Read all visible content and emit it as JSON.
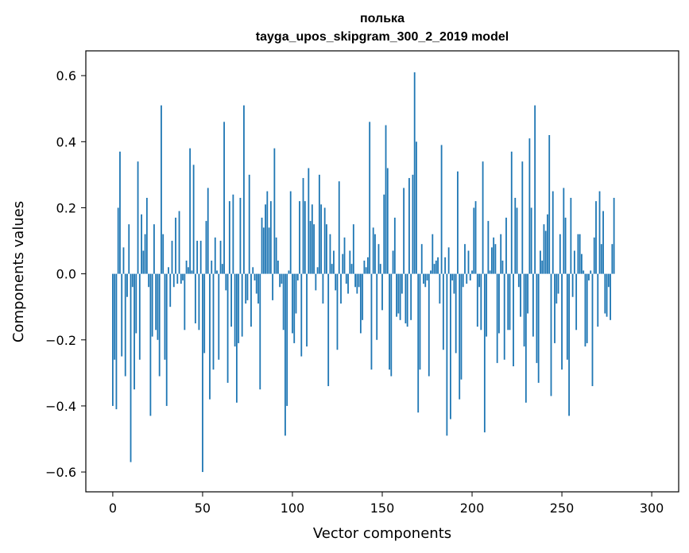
{
  "chart_data": {
    "type": "bar",
    "title": "полька",
    "subtitle": "tayga_upos_skipgram_300_2_2019 model",
    "xlabel": "Vector components",
    "ylabel": "Components values",
    "xlim": [
      -15,
      315
    ],
    "ylim": [
      -0.66,
      0.675
    ],
    "xticks": [
      0,
      50,
      100,
      150,
      200,
      250,
      300
    ],
    "xtick_labels": [
      "0",
      "50",
      "100",
      "150",
      "200",
      "250",
      "300"
    ],
    "yticks": [
      -0.6,
      -0.4,
      -0.2,
      0.0,
      0.2,
      0.4,
      0.6
    ],
    "ytick_labels": [
      "−0.6",
      "−0.4",
      "−0.2",
      "0.0",
      "0.2",
      "0.4",
      "0.6"
    ],
    "grid": false,
    "bar_color": "#1f77b4",
    "values": [
      -0.4,
      -0.26,
      -0.41,
      0.2,
      0.37,
      -0.25,
      0.08,
      -0.31,
      -0.07,
      0.15,
      -0.57,
      -0.04,
      -0.35,
      -0.18,
      0.34,
      -0.26,
      0.18,
      0.07,
      0.12,
      0.23,
      -0.04,
      -0.43,
      -0.19,
      0.15,
      -0.17,
      -0.2,
      -0.31,
      0.51,
      0.12,
      -0.26,
      -0.4,
      0.02,
      -0.1,
      0.1,
      -0.04,
      0.17,
      -0.03,
      0.19,
      -0.03,
      -0.02,
      -0.17,
      0.04,
      0.02,
      0.38,
      0.01,
      0.33,
      -0.15,
      0.1,
      -0.17,
      0.1,
      -0.6,
      -0.24,
      0.16,
      0.26,
      -0.38,
      0.04,
      -0.29,
      0.11,
      0.01,
      -0.26,
      0.1,
      0.03,
      0.46,
      -0.05,
      -0.33,
      0.22,
      -0.16,
      0.24,
      -0.22,
      -0.39,
      -0.21,
      0.23,
      -0.19,
      0.51,
      -0.09,
      -0.08,
      0.3,
      -0.16,
      0.02,
      -0.02,
      -0.06,
      -0.09,
      -0.35,
      0.17,
      0.14,
      0.21,
      0.25,
      0.14,
      0.22,
      -0.08,
      0.38,
      0.11,
      0.04,
      -0.04,
      -0.03,
      -0.17,
      -0.49,
      -0.4,
      0.01,
      0.25,
      -0.18,
      -0.21,
      -0.12,
      -0.02,
      0.22,
      -0.25,
      0.29,
      0.22,
      -0.22,
      0.32,
      0.16,
      0.21,
      0.15,
      -0.05,
      0.02,
      0.3,
      0.21,
      -0.09,
      0.2,
      0.15,
      -0.34,
      0.12,
      0.03,
      0.07,
      -0.05,
      -0.23,
      0.28,
      -0.09,
      0.06,
      0.11,
      -0.03,
      -0.06,
      0.07,
      0.03,
      0.15,
      -0.04,
      -0.06,
      -0.04,
      -0.18,
      -0.14,
      0.04,
      0.02,
      0.05,
      0.46,
      -0.29,
      0.14,
      0.12,
      -0.2,
      0.09,
      0.03,
      -0.11,
      0.24,
      0.45,
      0.32,
      -0.29,
      -0.31,
      0.07,
      0.17,
      -0.13,
      -0.12,
      -0.14,
      -0.06,
      0.26,
      -0.15,
      -0.16,
      0.29,
      -0.14,
      0.3,
      0.61,
      0.4,
      -0.42,
      -0.29,
      0.09,
      -0.03,
      -0.04,
      -0.02,
      -0.31,
      0.01,
      0.12,
      0.03,
      0.04,
      0.05,
      -0.09,
      0.39,
      -0.23,
      0.05,
      -0.49,
      0.08,
      -0.44,
      -0.02,
      -0.06,
      -0.24,
      0.31,
      -0.38,
      -0.32,
      -0.04,
      0.09,
      -0.03,
      0.07,
      -0.02,
      0.01,
      0.2,
      0.22,
      -0.16,
      -0.04,
      -0.17,
      0.34,
      -0.48,
      -0.19,
      0.16,
      0.01,
      0.08,
      0.11,
      0.09,
      -0.27,
      -0.18,
      0.12,
      0.04,
      -0.26,
      0.17,
      -0.17,
      -0.17,
      0.37,
      -0.28,
      0.23,
      0.2,
      -0.04,
      -0.13,
      0.34,
      -0.22,
      -0.39,
      -0.12,
      0.41,
      0.2,
      -0.19,
      0.51,
      -0.27,
      -0.33,
      0.07,
      0.04,
      0.15,
      0.13,
      0.18,
      0.42,
      -0.37,
      0.25,
      -0.21,
      -0.09,
      -0.06,
      0.12,
      -0.29,
      0.26,
      0.17,
      -0.26,
      -0.43,
      0.23,
      -0.07,
      0.07,
      -0.17,
      0.12,
      0.12,
      0.06,
      0.01,
      -0.22,
      -0.21,
      -0.02,
      0.01,
      -0.34,
      0.11,
      0.22,
      -0.16,
      0.25,
      0.09,
      0.19,
      -0.12,
      -0.13,
      -0.04,
      -0.14,
      0.09,
      0.23
    ]
  }
}
